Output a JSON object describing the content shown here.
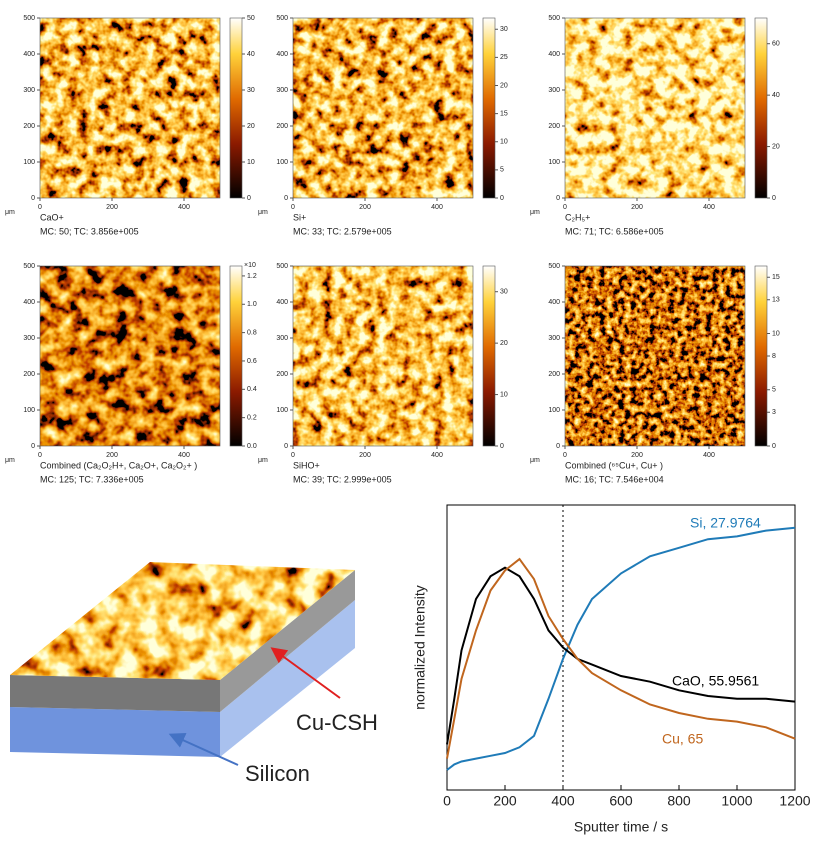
{
  "maps": {
    "unit": "μm",
    "x_ticks": [
      0,
      200,
      400
    ],
    "y_ticks": [
      0,
      100,
      200,
      300,
      400,
      500
    ],
    "xy_lim": [
      0,
      500
    ],
    "items": [
      {
        "species": "CaO+",
        "caption": "MC:   50; TC: 3.856e+005",
        "cbar_lim": [
          0,
          50
        ],
        "cbar_ticks": [
          0,
          10,
          20,
          30,
          40,
          50
        ]
      },
      {
        "species": "Si+",
        "caption": "MC:   33; TC: 2.579e+005",
        "cbar_lim": [
          0,
          32
        ],
        "cbar_ticks": [
          0,
          5,
          10,
          15,
          20,
          25,
          30
        ]
      },
      {
        "species": "C₂H₅+",
        "caption": "MC:   71; TC: 6.586e+005",
        "cbar_lim": [
          0,
          70
        ],
        "cbar_ticks": [
          0,
          20,
          40,
          60
        ]
      },
      {
        "species": "Combined (Ca₂O₂H+, Ca₂O+, Ca₂O₂+ )",
        "caption": "MC:  125; TC: 7.336e+005",
        "cbar_lim": [
          0,
          1.27
        ],
        "cbar_ticks": [
          {
            "value": 0,
            "label": "0.0"
          },
          0.2,
          0.4,
          0.6,
          0.8,
          {
            "value": 1,
            "label": "1.0"
          },
          1.2
        ],
        "cbar_multiplier": "×10"
      },
      {
        "species": "SiHO+",
        "caption": "MC:   39; TC: 2.999e+005",
        "cbar_lim": [
          0,
          35
        ],
        "cbar_ticks": [
          0,
          10,
          20,
          30
        ]
      },
      {
        "species": "Combined (⁶⁵Cu+, Cu+ )",
        "caption": "MC:   16; TC: 7.546e+004",
        "cbar_lim": [
          0,
          16
        ],
        "cbar_ticks": [
          0,
          3,
          5,
          8,
          10,
          13,
          15
        ]
      }
    ]
  },
  "illustration": {
    "layer_label": "Cu-CSH",
    "substrate_label": "Silicon"
  },
  "chart_data": {
    "type": "line",
    "x_label": "Sputter time / s",
    "y_label": "normalized Intensity",
    "x": [
      0,
      25,
      50,
      100,
      150,
      200,
      250,
      300,
      350,
      400,
      450,
      500,
      600,
      700,
      800,
      900,
      1000,
      1100,
      1200
    ],
    "xlim": [
      0,
      1200
    ],
    "xticks": [
      0,
      200,
      400,
      600,
      800,
      1000,
      1200
    ],
    "ylim": [
      0,
      1
    ],
    "vline": 400,
    "series": [
      {
        "name": "Si, 27.9764",
        "color": "#1f7bb8",
        "values": [
          0.07,
          0.09,
          0.1,
          0.11,
          0.12,
          0.13,
          0.15,
          0.19,
          0.32,
          0.46,
          0.58,
          0.67,
          0.76,
          0.82,
          0.85,
          0.88,
          0.89,
          0.91,
          0.92
        ]
      },
      {
        "name": "CaO, 55.9561",
        "color": "#000000",
        "values": [
          0.16,
          0.32,
          0.49,
          0.67,
          0.75,
          0.78,
          0.75,
          0.67,
          0.56,
          0.5,
          0.46,
          0.44,
          0.4,
          0.38,
          0.35,
          0.33,
          0.32,
          0.32,
          0.31
        ]
      },
      {
        "name": "Cu, 65",
        "color": "#c0661e",
        "values": [
          0.11,
          0.25,
          0.39,
          0.56,
          0.7,
          0.77,
          0.81,
          0.74,
          0.61,
          0.53,
          0.46,
          0.41,
          0.35,
          0.3,
          0.27,
          0.25,
          0.24,
          0.22,
          0.18
        ]
      }
    ]
  }
}
